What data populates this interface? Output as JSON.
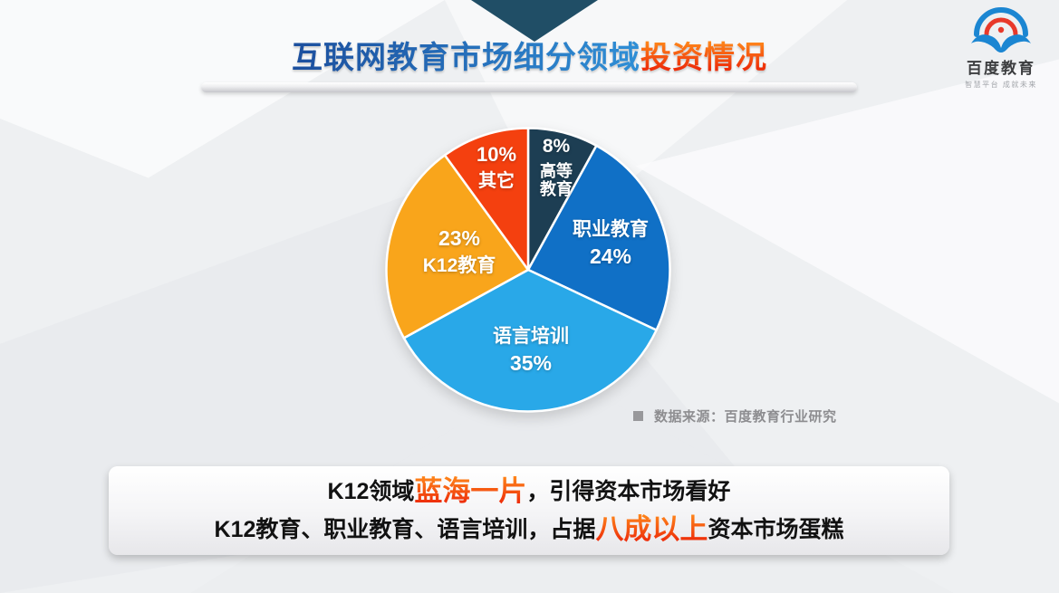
{
  "header": {
    "title_blue": "互联网教育市场细分领域",
    "title_red": "投资情况"
  },
  "logo": {
    "name": "百度教育",
    "tagline": "智慧平台 成就未来",
    "blue": "#1b86d2",
    "red": "#e8392a"
  },
  "chart_data": {
    "type": "pie",
    "title": "互联网教育市场细分领域投资情况",
    "unit": "percent",
    "start_angle": "12-o-clock, clockwise",
    "legend_position": "labels-on-slices",
    "slices": [
      {
        "id": "higher-education",
        "name": "高等教育",
        "label": "高等\n教育",
        "value": 8,
        "pct_label": "8%",
        "color": "#1d3e53"
      },
      {
        "id": "vocational-education",
        "name": "职业教育",
        "label": "职业教育",
        "value": 24,
        "pct_label": "24%",
        "color": "#1070c6"
      },
      {
        "id": "language-training",
        "name": "语言培训",
        "label": "语言培训",
        "value": 35,
        "pct_label": "35%",
        "color": "#29a8e8"
      },
      {
        "id": "k12-education",
        "name": "K12教育",
        "label": "K12教育",
        "value": 23,
        "pct_label": "23%",
        "color": "#f9a51b"
      },
      {
        "id": "other",
        "name": "其它",
        "label": "其它",
        "value": 10,
        "pct_label": "10%",
        "color": "#f4400f"
      }
    ],
    "source_note": "数据来源：百度教育行业研究"
  },
  "callout": {
    "line1_prefix": "K12领域",
    "line1_highlight": "蓝海一片",
    "line1_suffix": "，引得资本市场看好",
    "line2_prefix": "K12教育、职业教育、语言培训",
    "line2_mid": "，占据",
    "line2_highlight": "八成以上",
    "line2_suffix": "资本市场蛋糕"
  }
}
